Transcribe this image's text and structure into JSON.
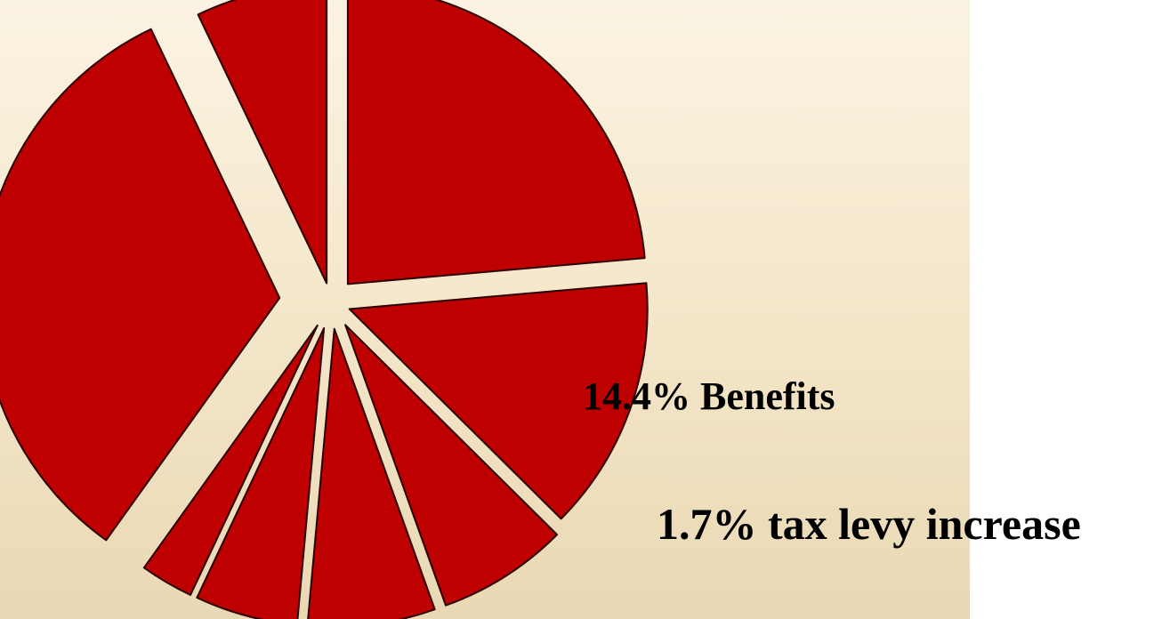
{
  "chart_data": {
    "type": "pie",
    "style": "exploded",
    "slice_color": "#be0000",
    "outline_color": "#2a0000",
    "background": [
      "#fbf3e2",
      "#e9d8b3"
    ],
    "slices": [
      {
        "value": 24.6
      },
      {
        "value": 14.4
      },
      {
        "value": 7.4
      },
      {
        "value": 7.2
      },
      {
        "value": 5.8
      },
      {
        "value": 3.0
      },
      {
        "value": 34.4
      },
      {
        "value": 7.4
      }
    ],
    "annotations": [
      "14.4% Benefits",
      "1.7% tax levy increase"
    ]
  }
}
